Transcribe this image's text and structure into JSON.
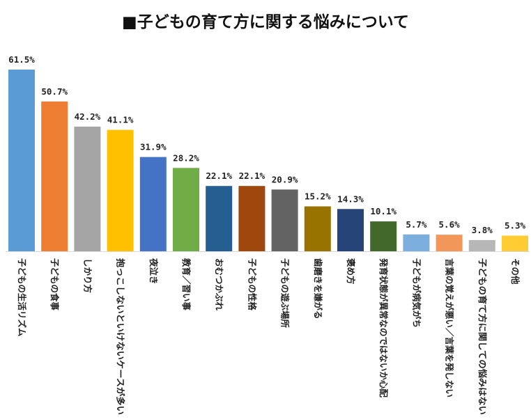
{
  "chart_data": {
    "type": "bar",
    "title": "■子どもの育て方に関する悩みについて",
    "categories": [
      "子どもの生活リズム",
      "子どもの食事",
      "しかり方",
      "抱っこしないといけないケースが多い",
      "夜泣き",
      "教育／習い事",
      "おむつかぶれ",
      "子どもの性格",
      "子どもの遊ぶ場所",
      "歯磨きを嫌がる",
      "褒め方",
      "発育状態が異常なのではないか心配",
      "子どもが病気がち",
      "言葉の覚えが悪い／言葉を発しない",
      "子どもの育て方に関しての悩みはない",
      "その他"
    ],
    "values": [
      61.5,
      50.7,
      42.2,
      41.1,
      31.9,
      28.2,
      22.1,
      22.1,
      20.9,
      15.2,
      14.3,
      10.1,
      5.7,
      5.6,
      3.8,
      5.3
    ],
    "value_labels": [
      "61.5%",
      "50.7%",
      "42.2%",
      "41.1%",
      "31.9%",
      "28.2%",
      "22.1%",
      "22.1%",
      "20.9%",
      "15.2%",
      "14.3%",
      "10.1%",
      "5.7%",
      "5.6%",
      "3.8%",
      "5.3%"
    ],
    "colors": [
      "#5b9bd5",
      "#ed7d31",
      "#a5a5a5",
      "#ffc000",
      "#4472c4",
      "#70ad47",
      "#255e91",
      "#9e480e",
      "#636363",
      "#997300",
      "#264478",
      "#43682b",
      "#7cafdd",
      "#f1975a",
      "#b7b7b7",
      "#ffcd33"
    ],
    "ylim": [
      0,
      65
    ],
    "grid": false,
    "legend": "none"
  }
}
